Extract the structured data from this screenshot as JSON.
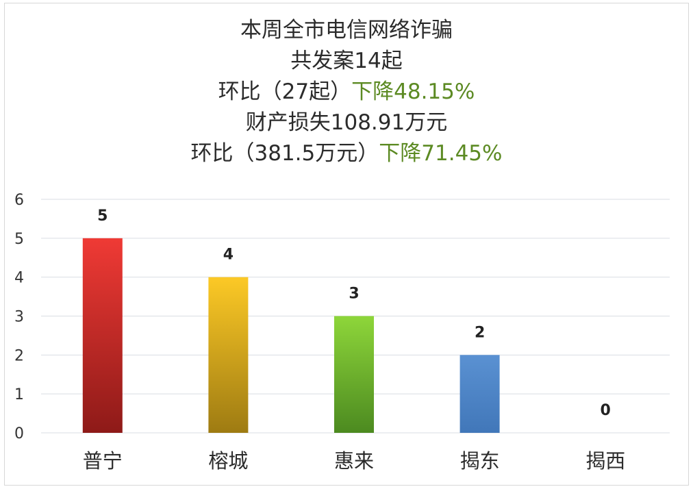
{
  "title_lines": [
    {
      "text": "本周全市电信网络诈骗"
    },
    {
      "text": "共发案14起"
    },
    {
      "text": "环比（27起）",
      "accent": "下降48.15%"
    },
    {
      "text": "财产损失108.91万元"
    },
    {
      "text": "环比（381.5万元）",
      "accent": "下降71.45%"
    }
  ],
  "colors": {
    "accent": "#5c8a23",
    "bar_red": "#e5312e",
    "bar_yellow": "#f2bf1a",
    "bar_green": "#7ec82c",
    "bar_blue": "#4f86c6",
    "grid": "#d9dde3"
  },
  "chart_data": {
    "type": "bar",
    "categories": [
      "普宁",
      "榕城",
      "惠来",
      "揭东",
      "揭西"
    ],
    "values": [
      5,
      4,
      3,
      2,
      0
    ],
    "data_labels": [
      "5",
      "4",
      "3",
      "2",
      "0"
    ],
    "ylim": [
      0,
      6
    ],
    "yticks": [
      "0",
      "1",
      "2",
      "3",
      "4",
      "5",
      "6"
    ],
    "grid": true,
    "legend": "none"
  }
}
